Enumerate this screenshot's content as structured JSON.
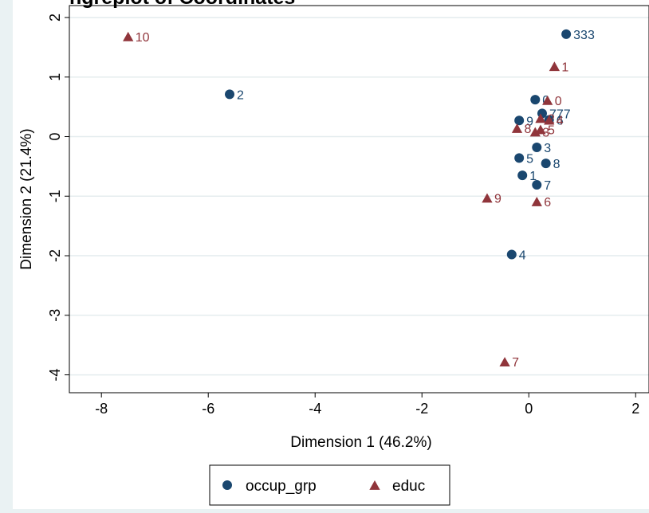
{
  "chart_data": {
    "type": "scatter",
    "title": "ngreplot of Coordinates",
    "xlabel": "Dimension 1 (46.2%)",
    "ylabel": "Dimension 2 (21.4%)",
    "xlim": [
      -8.6,
      2.25
    ],
    "ylim": [
      -4.3,
      2.2
    ],
    "xticks": [
      -8,
      -6,
      -4,
      -2,
      0,
      2
    ],
    "yticks": [
      2,
      1,
      0,
      -1,
      -2,
      -3,
      -4
    ],
    "grid": true,
    "legend_position": "bottom",
    "series": [
      {
        "name": "occup_grp",
        "marker": "circle",
        "color": "#1a476f",
        "points": [
          {
            "x": 0.7,
            "y": 1.72,
            "label": "333"
          },
          {
            "x": -5.6,
            "y": 0.71,
            "label": "2"
          },
          {
            "x": 0.12,
            "y": 0.62,
            "label": "0"
          },
          {
            "x": 0.25,
            "y": 0.39,
            "label": "777"
          },
          {
            "x": 0.38,
            "y": 0.28,
            "label": "6"
          },
          {
            "x": -0.18,
            "y": 0.27,
            "label": "9"
          },
          {
            "x": 0.15,
            "y": -0.18,
            "label": "3"
          },
          {
            "x": -0.18,
            "y": -0.36,
            "label": "5"
          },
          {
            "x": 0.32,
            "y": -0.45,
            "label": "8"
          },
          {
            "x": -0.12,
            "y": -0.65,
            "label": "1"
          },
          {
            "x": 0.15,
            "y": -0.81,
            "label": "7"
          },
          {
            "x": -0.32,
            "y": -1.98,
            "label": "4"
          }
        ]
      },
      {
        "name": "educ",
        "marker": "triangle",
        "color": "#90353b",
        "points": [
          {
            "x": -7.5,
            "y": 1.68,
            "label": "10"
          },
          {
            "x": 0.48,
            "y": 1.18,
            "label": "1"
          },
          {
            "x": 0.35,
            "y": 0.61,
            "label": "0"
          },
          {
            "x": 0.22,
            "y": 0.31,
            "label": "2"
          },
          {
            "x": 0.38,
            "y": 0.28,
            "label": "4"
          },
          {
            "x": -0.22,
            "y": 0.14,
            "label": "8"
          },
          {
            "x": 0.22,
            "y": 0.12,
            "label": "5"
          },
          {
            "x": 0.12,
            "y": 0.08,
            "label": "3"
          },
          {
            "x": -0.78,
            "y": -1.03,
            "label": "9"
          },
          {
            "x": 0.15,
            "y": -1.09,
            "label": "6"
          },
          {
            "x": -0.45,
            "y": -3.78,
            "label": "7"
          }
        ]
      }
    ]
  }
}
